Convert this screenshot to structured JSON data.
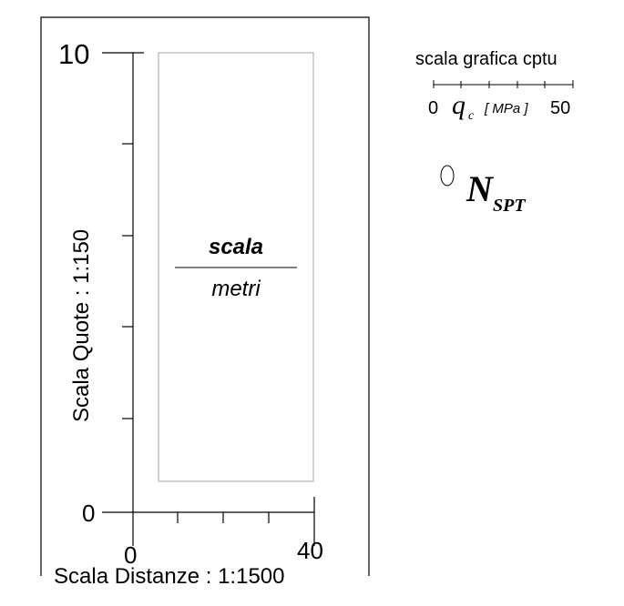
{
  "scale_box": {
    "y_axis_label": "Scala Quote : 1:150",
    "x_axis_label": "Scala Distanze : 1:1500",
    "y_top": "10",
    "y_bottom": "0",
    "x_left": "0",
    "x_right": "40",
    "center_top": "scala",
    "center_bottom": "metri",
    "colors": {
      "line": "#000000",
      "inner_rect": "#b3b3b3",
      "divider": "#808080"
    }
  },
  "legend": {
    "cptu_title": "scala grafica cptu",
    "cptu_min": "0",
    "cptu_symbol": "q",
    "cptu_subscript": "c",
    "cptu_unit": "[ MPa ]",
    "cptu_max": "50",
    "spt_symbol": "N",
    "spt_subscript": "SPT"
  }
}
